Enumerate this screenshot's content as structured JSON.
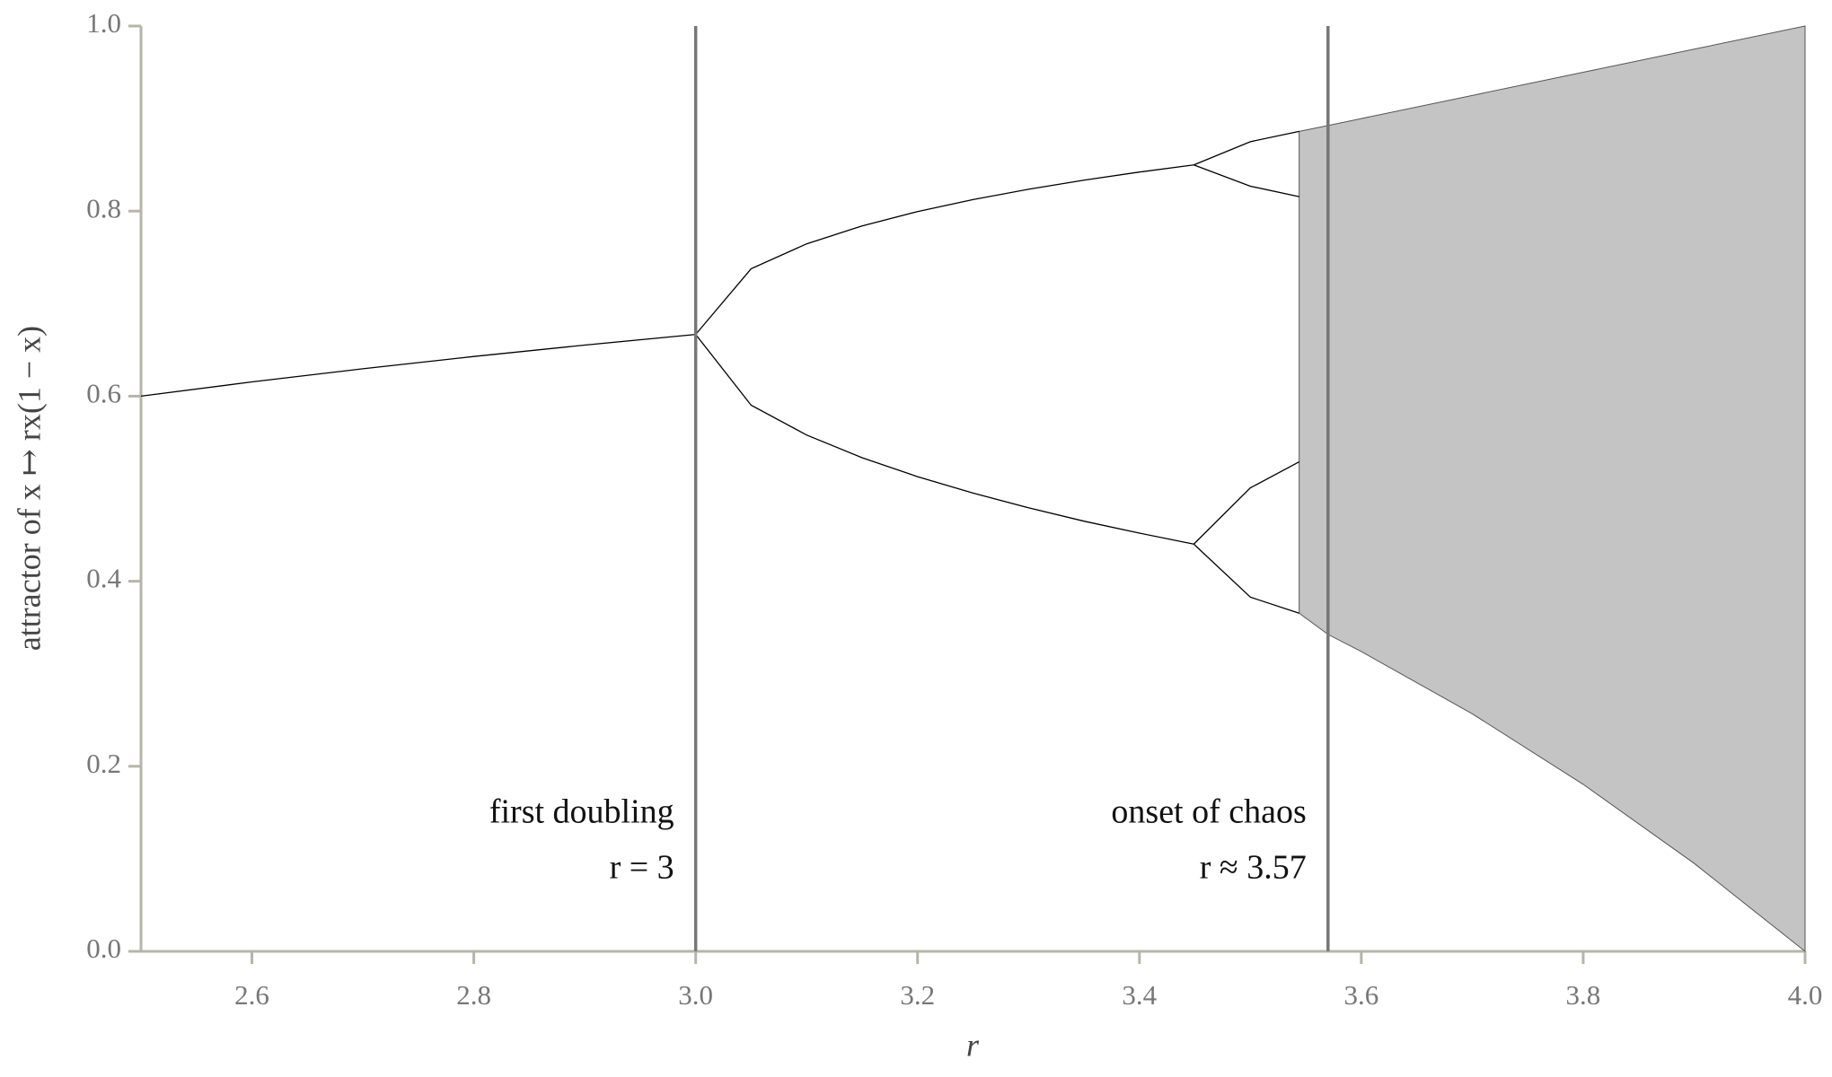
{
  "chart_data": {
    "type": "bifurcation",
    "x_label": "r",
    "y_label": "attractor of x ↦ rx(1 − x)",
    "xlim": [
      2.5,
      4.0
    ],
    "ylim": [
      0,
      1
    ],
    "xticks": [
      2.6,
      2.8,
      {
        "value": 3,
        "label": "3.0"
      },
      3.2,
      3.4,
      3.6,
      3.8,
      {
        "value": 4,
        "label": "4.0"
      }
    ],
    "yticks": [
      {
        "value": 0,
        "label": "0.0"
      },
      0.2,
      0.4,
      0.6,
      0.8,
      {
        "value": 1,
        "label": "1.0"
      }
    ],
    "color": "#000000",
    "series": [
      {
        "x": [
          2.5,
          2.6,
          2.7,
          2.8,
          2.9,
          3.0
        ],
        "values": [
          0.6,
          0.6154,
          0.6296,
          0.6429,
          0.6552,
          0.6667
        ]
      },
      {
        "x": [
          3.0,
          3.05,
          3.1,
          3.15,
          3.2,
          3.25,
          3.3,
          3.35,
          3.4,
          3.449
        ],
        "values": [
          0.6667,
          0.7377,
          0.7646,
          0.784,
          0.7995,
          0.8124,
          0.8236,
          0.8334,
          0.8422,
          0.8499
        ]
      },
      {
        "x": [
          3.0,
          3.05,
          3.1,
          3.15,
          3.2,
          3.25,
          3.3,
          3.35,
          3.4,
          3.449
        ],
        "values": [
          0.6667,
          0.5902,
          0.558,
          0.5335,
          0.513,
          0.4953,
          0.4794,
          0.4649,
          0.452,
          0.4401
        ]
      },
      {
        "x": [
          3.449,
          3.5,
          3.544
        ],
        "values": [
          0.8499,
          0.875,
          0.8862
        ]
      },
      {
        "x": [
          3.449,
          3.5,
          3.544
        ],
        "values": [
          0.8499,
          0.8269,
          0.8156
        ]
      },
      {
        "x": [
          3.449,
          3.5,
          3.544
        ],
        "values": [
          0.4401,
          0.5009,
          0.529
        ]
      },
      {
        "x": [
          3.449,
          3.5,
          3.544
        ],
        "values": [
          0.4401,
          0.3828,
          0.3654
        ]
      }
    ],
    "band": {
      "color": "#555555",
      "x": [
        3.544,
        3.57,
        3.6,
        3.7,
        3.8,
        3.9,
        4.0
      ],
      "upper": [
        0.8862,
        0.8925,
        0.9,
        0.925,
        0.95,
        0.975,
        1
      ],
      "lower": [
        0.3654,
        0.3425,
        0.324,
        0.2567,
        0.1805,
        0.0951,
        0
      ]
    },
    "annotations": [
      {
        "x": 3,
        "lines": [
          "first doubling",
          "r = 3"
        ]
      },
      {
        "x": 3.57,
        "lines": [
          "onset of chaos",
          "r ≈ 3.57"
        ]
      }
    ]
  }
}
